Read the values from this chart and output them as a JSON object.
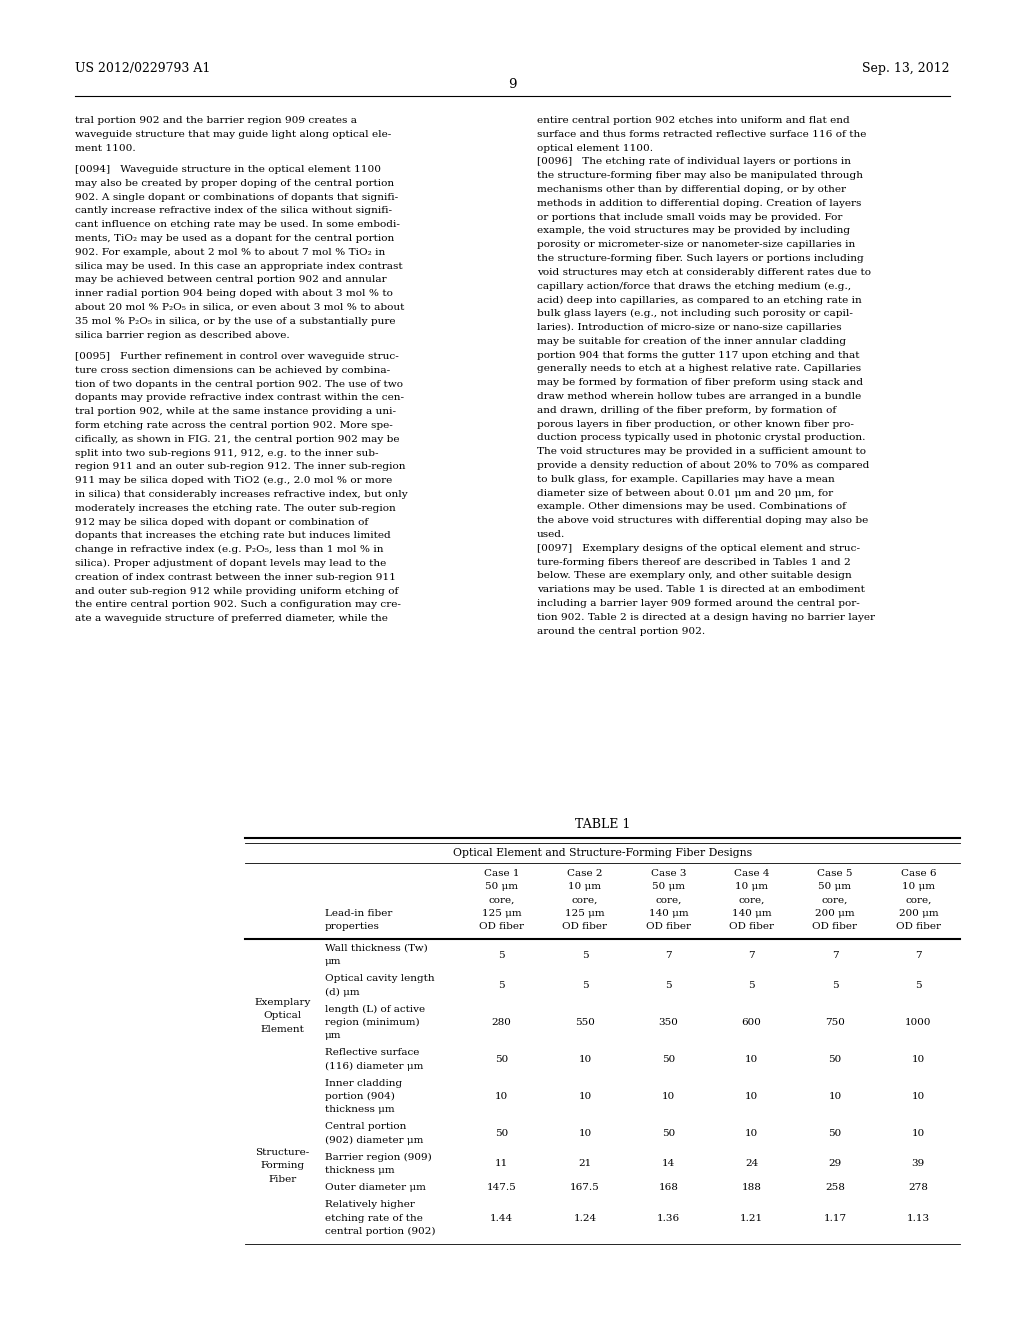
{
  "page_header_left": "US 2012/0229793 A1",
  "page_header_right": "Sep. 13, 2012",
  "page_number": "9",
  "background_color": "#ffffff",
  "table_title": "TABLE 1",
  "table_subtitle": "Optical Element and Structure-Forming Fiber Designs",
  "col_headers": [
    "Lead-in fiber\nproperties",
    "Case 1\n50 μm\ncore,\n125 μm\nOD fiber",
    "Case 2\n10 μm\ncore,\n125 μm\nOD fiber",
    "Case 3\n50 μm\ncore,\n140 μm\nOD fiber",
    "Case 4\n10 μm\ncore,\n140 μm\nOD fiber",
    "Case 5\n50 μm\ncore,\n200 μm\nOD fiber",
    "Case 6\n10 μm\ncore,\n200 μm\nOD fiber"
  ],
  "table_rows": [
    {
      "group": "Exemplary\nOptical\nElement",
      "property": "Wall thickness (Tw)\nμm",
      "values": [
        "5",
        "5",
        "7",
        "7",
        "7",
        "7"
      ]
    },
    {
      "group": "",
      "property": "Optical cavity length\n(d) μm",
      "values": [
        "5",
        "5",
        "5",
        "5",
        "5",
        "5"
      ]
    },
    {
      "group": "",
      "property": "length (L) of active\nregion (minimum)\nμm",
      "values": [
        "280",
        "550",
        "350",
        "600",
        "750",
        "1000"
      ]
    },
    {
      "group": "",
      "property": "Reflective surface\n(116) diameter μm",
      "values": [
        "50",
        "10",
        "50",
        "10",
        "50",
        "10"
      ]
    },
    {
      "group": "Structure-\nForming\nFiber",
      "property": "Inner cladding\nportion (904)\nthickness μm",
      "values": [
        "10",
        "10",
        "10",
        "10",
        "10",
        "10"
      ]
    },
    {
      "group": "",
      "property": "Central portion\n(902) diameter μm",
      "values": [
        "50",
        "10",
        "50",
        "10",
        "50",
        "10"
      ]
    },
    {
      "group": "",
      "property": "Barrier region (909)\nthickness μm",
      "values": [
        "11",
        "21",
        "14",
        "24",
        "29",
        "39"
      ]
    },
    {
      "group": "",
      "property": "Outer diameter μm",
      "values": [
        "147.5",
        "167.5",
        "168",
        "188",
        "258",
        "278"
      ]
    },
    {
      "group": "",
      "property": "Relatively higher\netching rate of the\ncentral portion (902)",
      "values": [
        "1.44",
        "1.24",
        "1.36",
        "1.21",
        "1.17",
        "1.13"
      ]
    }
  ],
  "left_text_lines": [
    "tral portion 902 and the barrier region 909 creates a",
    "waveguide structure that may guide light along optical ele-",
    "ment 1100.",
    "",
    "[0094]   Waveguide structure in the optical element 1100",
    "may also be created by proper doping of the central portion",
    "902. A single dopant or combinations of dopants that signifi-",
    "cantly increase refractive index of the silica without signifi-",
    "cant influence on etching rate may be used. In some embodi-",
    "ments, TiO₂ may be used as a dopant for the central portion",
    "902. For example, about 2 mol % to about 7 mol % TiO₂ in",
    "silica may be used. In this case an appropriate index contrast",
    "may be achieved between central portion 902 and annular",
    "inner radial portion 904 being doped with about 3 mol % to",
    "about 20 mol % P₂O₅ in silica, or even about 3 mol % to about",
    "35 mol % P₂O₅ in silica, or by the use of a substantially pure",
    "silica barrier region as described above.",
    "",
    "[0095]   Further refinement in control over waveguide struc-",
    "ture cross section dimensions can be achieved by combina-",
    "tion of two dopants in the central portion 902. The use of two",
    "dopants may provide refractive index contrast within the cen-",
    "tral portion 902, while at the same instance providing a uni-",
    "form etching rate across the central portion 902. More spe-",
    "cifically, as shown in FIG. 21, the central portion 902 may be",
    "split into two sub-regions 911, 912, e.g. to the inner sub-",
    "region 911 and an outer sub-region 912. The inner sub-region",
    "911 may be silica doped with TiO2 (e.g., 2.0 mol % or more",
    "in silica) that considerably increases refractive index, but only",
    "moderately increases the etching rate. The outer sub-region",
    "912 may be silica doped with dopant or combination of",
    "dopants that increases the etching rate but induces limited",
    "change in refractive index (e.g. P₂O₅, less than 1 mol % in",
    "silica). Proper adjustment of dopant levels may lead to the",
    "creation of index contrast between the inner sub-region 911",
    "and outer sub-region 912 while providing uniform etching of",
    "the entire central portion 902. Such a configuration may cre-",
    "ate a waveguide structure of preferred diameter, while the"
  ],
  "right_text_lines": [
    "entire central portion 902 etches into uniform and flat end",
    "surface and thus forms retracted reflective surface 116 of the",
    "optical element 1100.",
    "[0096]   The etching rate of individual layers or portions in",
    "the structure-forming fiber may also be manipulated through",
    "mechanisms other than by differential doping, or by other",
    "methods in addition to differential doping. Creation of layers",
    "or portions that include small voids may be provided. For",
    "example, the void structures may be provided by including",
    "porosity or micrometer-size or nanometer-size capillaries in",
    "the structure-forming fiber. Such layers or portions including",
    "void structures may etch at considerably different rates due to",
    "capillary action/force that draws the etching medium (e.g.,",
    "acid) deep into capillaries, as compared to an etching rate in",
    "bulk glass layers (e.g., not including such porosity or capil-",
    "laries). Introduction of micro-size or nano-size capillaries",
    "may be suitable for creation of the inner annular cladding",
    "portion 904 that forms the gutter 117 upon etching and that",
    "generally needs to etch at a highest relative rate. Capillaries",
    "may be formed by formation of fiber preform using stack and",
    "draw method wherein hollow tubes are arranged in a bundle",
    "and drawn, drilling of the fiber preform, by formation of",
    "porous layers in fiber production, or other known fiber pro-",
    "duction process typically used in photonic crystal production.",
    "The void structures may be provided in a sufficient amount to",
    "provide a density reduction of about 20% to 70% as compared",
    "to bulk glass, for example. Capillaries may have a mean",
    "diameter size of between about 0.01 μm and 20 μm, for",
    "example. Other dimensions may be used. Combinations of",
    "the above void structures with differential doping may also be",
    "used.",
    "[0097]   Exemplary designs of the optical element and struc-",
    "ture-forming fibers thereof are described in Tables 1 and 2",
    "below. These are exemplary only, and other suitable design",
    "variations may be used. Table 1 is directed at an embodiment",
    "including a barrier layer 909 formed around the central por-",
    "tion 902. Table 2 is directed at a design having no barrier layer",
    "around the central portion 902."
  ],
  "bold_numbers": [
    "902",
    "909",
    "1100",
    "904",
    "911",
    "912",
    "116",
    "117"
  ]
}
